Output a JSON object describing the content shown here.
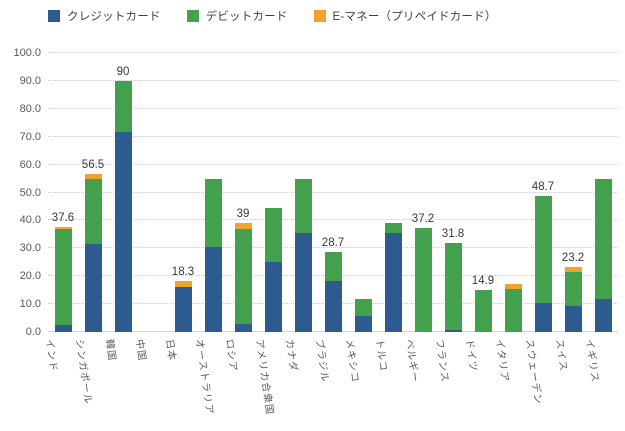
{
  "legend": [
    {
      "key": "credit-card",
      "label": "クレジットカード",
      "color": "#2E5B8F"
    },
    {
      "key": "debit-card",
      "label": "デビットカード",
      "color": "#43A04C"
    },
    {
      "key": "e-money",
      "label": "E-マネー（プリペイドカード）",
      "color": "#F0A32F"
    }
  ],
  "axis": {
    "y_ticks": [
      "100.0",
      "90.0",
      "80.0",
      "70.0",
      "60.0",
      "50.0",
      "40.0",
      "30.0",
      "20.0",
      "10.0",
      "0.0"
    ],
    "grid": "dotted horizontal, every 10 units"
  },
  "chart_data": {
    "type": "bar",
    "stacked": true,
    "title": "",
    "xlabel": "",
    "ylabel": "",
    "ylim": [
      0,
      100
    ],
    "legend_position": "top",
    "categories": [
      "インド",
      "シンガポール",
      "韓国",
      "中国",
      "日本",
      "オーストラリア",
      "ロシア",
      "アメリカ合衆国",
      "カナダ",
      "ブラジル",
      "メキシコ",
      "トルコ",
      "ベルギー",
      "フランス",
      "ドイツ",
      "イタリア",
      "スウェーデン",
      "スイス",
      "イギリス"
    ],
    "series": [
      {
        "key": "credit-card",
        "name": "クレジットカード",
        "color": "#2E5B8F",
        "values": [
          2.5,
          31.5,
          71.6,
          0,
          16.3,
          30.5,
          2.8,
          25,
          35.6,
          18.4,
          5.7,
          35.5,
          0,
          0.8,
          0,
          0,
          10.5,
          9.5,
          11.7
        ]
      },
      {
        "key": "debit-card",
        "name": "デビットカード",
        "color": "#43A04C",
        "values": [
          34.3,
          23.4,
          18.4,
          0,
          0,
          24.2,
          34.2,
          19.5,
          19.1,
          10.3,
          6.3,
          3.5,
          37.2,
          31,
          14.9,
          15.5,
          38.2,
          12,
          43
        ]
      },
      {
        "key": "e-money",
        "name": "E-マネー（プリペイドカード）",
        "color": "#F0A32F",
        "values": [
          0.8,
          1.6,
          0,
          0,
          2,
          0,
          2,
          0,
          0,
          0,
          0,
          0,
          0,
          0,
          0,
          1.6,
          0,
          1.7,
          0
        ]
      }
    ],
    "total_labels": [
      "37.6",
      "56.5",
      "90",
      "",
      "18.3",
      "",
      "39",
      "",
      "",
      "28.7",
      "",
      "",
      "37.2",
      "31.8",
      "14.9",
      "",
      "48.7",
      "23.2",
      ""
    ]
  }
}
